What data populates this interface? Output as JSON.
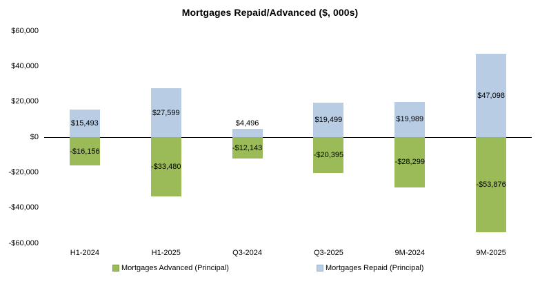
{
  "title": "Mortgages Repaid/Advanced ($, 000s)",
  "chart_data": {
    "type": "bar",
    "title": "Mortgages Repaid/Advanced ($, 000s)",
    "categories": [
      "H1-2024",
      "H1-2025",
      "Q3-2024",
      "Q3-2025",
      "9M-2024",
      "9M-2025"
    ],
    "series": [
      {
        "name": "Mortgages Advanced (Principal)",
        "color": "#9BBB59",
        "values": [
          -16156,
          -33480,
          -12143,
          -20395,
          -28299,
          -53876
        ],
        "labels": [
          "-$16,156",
          "-$33,480",
          "-$12,143",
          "-$20,395",
          "-$28,299",
          "-$53,876"
        ]
      },
      {
        "name": "Mortgages Repaid (Principal)",
        "color": "#B8CCE4",
        "values": [
          15493,
          27599,
          4496,
          19499,
          19989,
          47098
        ],
        "labels": [
          "$15,493",
          "$27,599",
          "$4,496",
          "$19,499",
          "$19,989",
          "$47,098"
        ]
      }
    ],
    "ylim": [
      -60000,
      60000
    ],
    "y_ticks": [
      {
        "value": 60000,
        "label": "$60,000"
      },
      {
        "value": 40000,
        "label": "$40,000"
      },
      {
        "value": 20000,
        "label": "$20,000"
      },
      {
        "value": 0,
        "label": "$0"
      },
      {
        "value": -20000,
        "label": "-$20,000"
      },
      {
        "value": -40000,
        "label": "-$40,000"
      },
      {
        "value": -60000,
        "label": "-$60,000"
      }
    ],
    "grid": false,
    "legend_position": "bottom",
    "axis_line_color": "#000000",
    "background_color": "#FFFFFF"
  }
}
